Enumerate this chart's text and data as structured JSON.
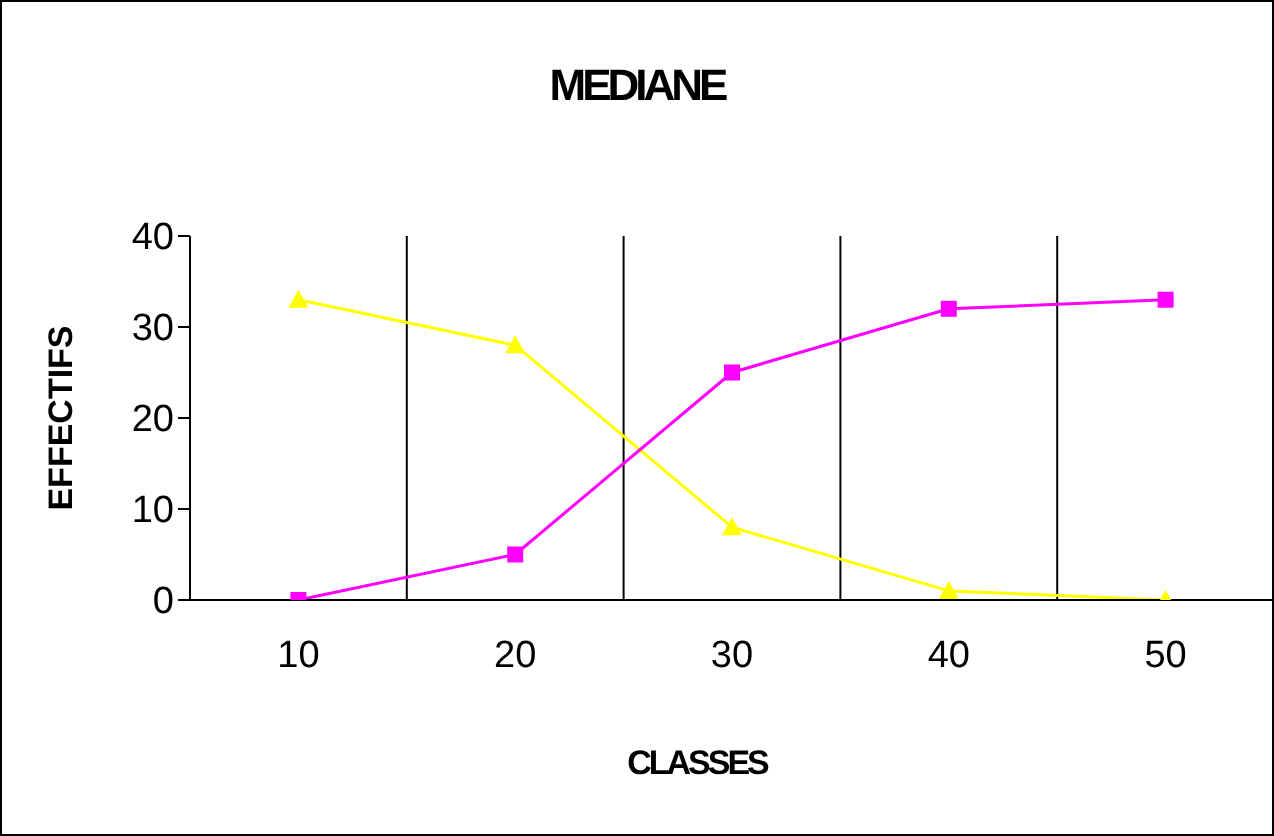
{
  "chart_data": {
    "type": "line",
    "title": "MEDIANE",
    "xlabel": "CLASSES",
    "ylabel": "EFFECTIFS",
    "categories": [
      "10",
      "20",
      "30",
      "40",
      "50"
    ],
    "series": [
      {
        "color": "#ffff00",
        "values": [
          33,
          28,
          8,
          1,
          0
        ],
        "marker": "triangle"
      },
      {
        "color": "#ff00ff",
        "values": [
          0,
          5,
          25,
          32,
          33
        ],
        "marker": "square"
      }
    ],
    "ylim": [
      0,
      40
    ],
    "yticks": [
      0,
      10,
      20,
      30,
      40
    ],
    "grid": "x",
    "legend": false,
    "line_style": "solid"
  }
}
